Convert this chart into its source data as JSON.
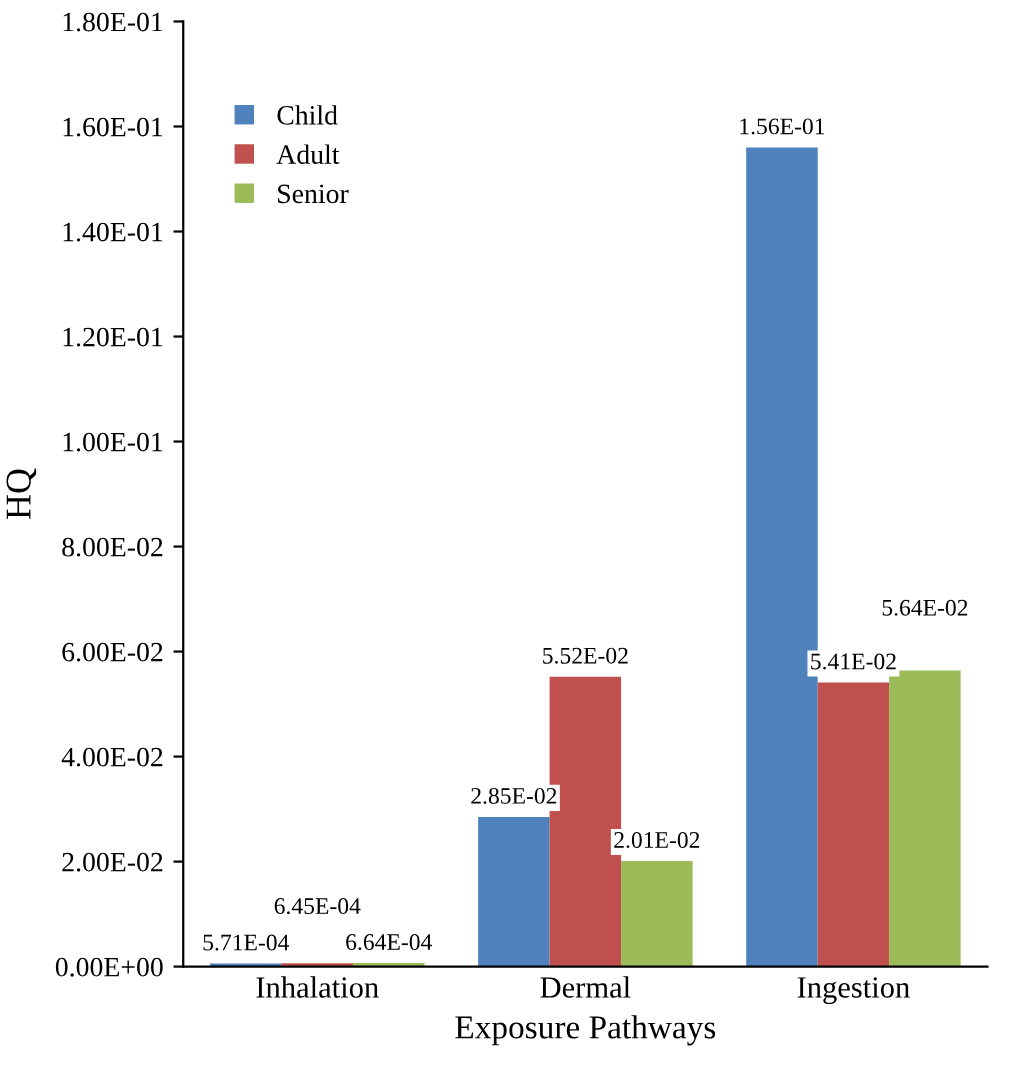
{
  "chart_data": {
    "type": "bar",
    "xlabel": "Exposure Pathways",
    "ylabel": "HQ",
    "categories": [
      "Inhalation",
      "Dermal",
      "Ingestion"
    ],
    "series": [
      {
        "name": "Child",
        "color": "#4f81bd",
        "values": [
          0.000571,
          0.0285,
          0.156
        ],
        "value_labels": [
          "5.71E-04",
          "2.85E-02",
          "1.56E-01"
        ]
      },
      {
        "name": "Adult",
        "color": "#c0504d",
        "values": [
          0.000645,
          0.0552,
          0.0541
        ],
        "value_labels": [
          "6.45E-04",
          "5.52E-02",
          "5.41E-02"
        ]
      },
      {
        "name": "Senior",
        "color": "#9bbb59",
        "values": [
          0.000664,
          0.0201,
          0.0564
        ],
        "value_labels": [
          "6.64E-04",
          "2.01E-02",
          "5.64E-02"
        ]
      }
    ],
    "ylim": [
      0,
      0.18
    ],
    "yticks": [
      {
        "value": 0,
        "label": "0.00E+00"
      },
      {
        "value": 0.02,
        "label": "2.00E-02"
      },
      {
        "value": 0.04,
        "label": "4.00E-02"
      },
      {
        "value": 0.06,
        "label": "6.00E-02"
      },
      {
        "value": 0.08,
        "label": "8.00E-02"
      },
      {
        "value": 0.1,
        "label": "1.00E-01"
      },
      {
        "value": 0.12,
        "label": "1.20E-01"
      },
      {
        "value": 0.14,
        "label": "1.40E-01"
      },
      {
        "value": 0.16,
        "label": "1.60E-01"
      },
      {
        "value": 0.18,
        "label": "1.80E-01"
      }
    ],
    "grid": false,
    "legend": "top left"
  }
}
